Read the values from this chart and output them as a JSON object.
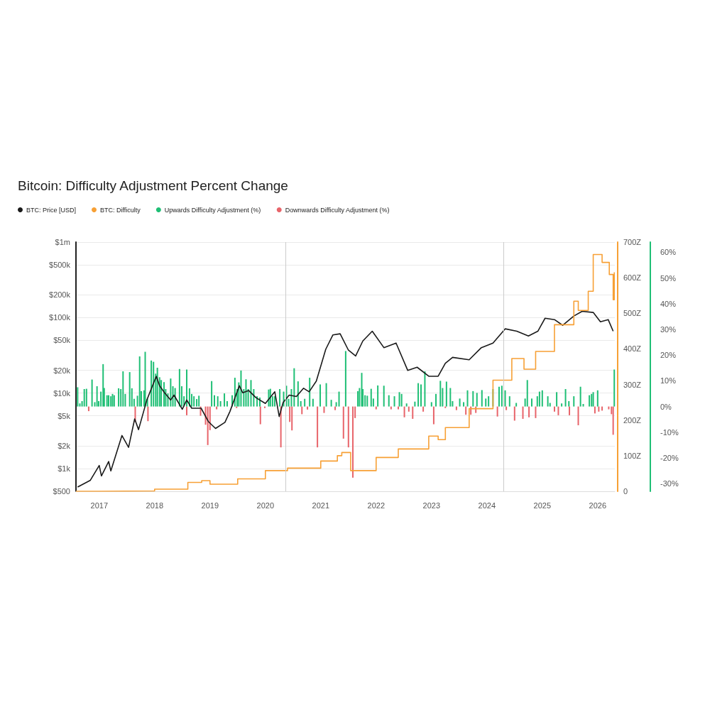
{
  "chart_data": {
    "type": "line",
    "title": "Bitcoin: Difficulty Adjustment Percent Change",
    "xlim": [
      2016.58,
      2026.31
    ],
    "xticks": [
      2017,
      2018,
      2019,
      2020,
      2021,
      2022,
      2023,
      2024,
      2025,
      2026
    ],
    "ylim": [
      500,
      1000000
    ],
    "yticks": [
      {
        "value": 500,
        "label": "$500"
      },
      {
        "value": 1000,
        "label": "$1k"
      },
      {
        "value": 2000,
        "label": "$2k"
      },
      {
        "value": 5000,
        "label": "$5k"
      },
      {
        "value": 10000,
        "label": "$10k"
      },
      {
        "value": 20000,
        "label": "$20k"
      },
      {
        "value": 50000,
        "label": "$50k"
      },
      {
        "value": 100000,
        "label": "$100k"
      },
      {
        "value": 200000,
        "label": "$200k"
      },
      {
        "value": 500000,
        "label": "$500k"
      },
      {
        "value": 1000000,
        "label": "$1m"
      }
    ],
    "y2lim": [
      0,
      700
    ],
    "y2ticks": [
      0,
      {
        "value": 100,
        "label": "100Z"
      },
      {
        "value": 200,
        "label": "200Z"
      },
      {
        "value": 300,
        "label": "300Z"
      },
      {
        "value": 400,
        "label": "400Z"
      },
      {
        "value": 500,
        "label": "500Z"
      },
      {
        "value": 600,
        "label": "600Z"
      },
      {
        "value": 700,
        "label": "700Z"
      }
    ],
    "y3lim": [
      -33,
      64
    ],
    "y3ticks": [
      {
        "value": -30,
        "label": "-30%"
      },
      {
        "value": -20,
        "label": "-20%"
      },
      {
        "value": -10,
        "label": "-10%"
      },
      {
        "value": 0,
        "label": "0%"
      },
      {
        "value": 10,
        "label": "10%"
      },
      {
        "value": 20,
        "label": "20%"
      },
      {
        "value": 30,
        "label": "30%"
      },
      {
        "value": 40,
        "label": "40%"
      },
      {
        "value": 50,
        "label": "50%"
      },
      {
        "value": 60,
        "label": "60%"
      }
    ],
    "log": "y",
    "grid": "y",
    "legend": "top left",
    "marker": "none",
    "ref_lines": [
      {
        "axis": "x",
        "value": 2020.36,
        "color": "#cccccc"
      },
      {
        "axis": "x",
        "value": 2024.3,
        "color": "#cccccc"
      }
    ],
    "series": [
      {
        "name": "BTC: Price [USD]",
        "axis": "y",
        "color": "#1a1a1a",
        "x": [
          2016.61,
          2016.84,
          2017.0,
          2017.04,
          2017.17,
          2017.21,
          2017.41,
          2017.53,
          2017.64,
          2017.71,
          2017.86,
          2018.03,
          2018.09,
          2018.18,
          2018.29,
          2018.35,
          2018.5,
          2018.58,
          2018.67,
          2018.84,
          2018.97,
          2019.1,
          2019.27,
          2019.36,
          2019.53,
          2019.59,
          2019.7,
          2019.83,
          2020.0,
          2020.17,
          2020.25,
          2020.32,
          2020.43,
          2020.56,
          2020.69,
          2020.79,
          2020.92,
          2021.09,
          2021.22,
          2021.35,
          2021.5,
          2021.63,
          2021.76,
          2021.93,
          2022.14,
          2022.36,
          2022.57,
          2022.74,
          2022.95,
          2023.12,
          2023.25,
          2023.38,
          2023.68,
          2023.9,
          2024.11,
          2024.33,
          2024.54,
          2024.75,
          2024.92,
          2025.05,
          2025.22,
          2025.37,
          2025.57,
          2025.72,
          2025.92,
          2026.05,
          2026.19,
          2026.28
        ],
        "values": [
          570,
          700,
          1100,
          800,
          1240,
          930,
          2740,
          1910,
          4550,
          3280,
          8100,
          16700,
          12500,
          10100,
          8100,
          9400,
          6100,
          8100,
          6300,
          6300,
          4200,
          3400,
          4100,
          5700,
          12500,
          10100,
          10800,
          8700,
          7300,
          10400,
          4900,
          7500,
          9400,
          9000,
          11600,
          10400,
          14400,
          38000,
          59000,
          61000,
          37000,
          31000,
          49000,
          66000,
          40000,
          46000,
          20000,
          22000,
          16700,
          16700,
          24800,
          29700,
          27600,
          40000,
          46000,
          71000,
          66000,
          57000,
          66000,
          98000,
          94000,
          79000,
          105000,
          121000,
          117000,
          88000,
          94000,
          66000
        ]
      },
      {
        "name": "BTC: Difficulty",
        "type": "step",
        "axis": "y2",
        "color": "#f7a035",
        "x": [
          2016.58,
          2017.0,
          2018.0,
          2018.6,
          2018.85,
          2019.0,
          2019.5,
          2020.0,
          2020.4,
          2021.0,
          2021.3,
          2021.38,
          2021.54,
          2022.0,
          2022.4,
          2022.7,
          2022.95,
          2023.12,
          2023.25,
          2023.68,
          2024.11,
          2024.45,
          2024.67,
          2024.88,
          2025.22,
          2025.57,
          2025.65,
          2025.83,
          2025.92,
          2026.08,
          2026.21,
          2026.28,
          2026.3
        ],
        "values": [
          0,
          1,
          6,
          25,
          30,
          20,
          35,
          58,
          65,
          85,
          100,
          109,
          58,
          95,
          119,
          119,
          155,
          145,
          179,
          232,
          312,
          373,
          343,
          393,
          468,
          534,
          508,
          562,
          665,
          643,
          609,
          538,
          615
        ]
      },
      {
        "name": "Upwards Difficulty Adjustment (%)",
        "type": "bar",
        "axis": "y3",
        "color": "#1fbf75",
        "x": [
          2016.61,
          2016.65,
          2016.69,
          2016.73,
          2016.77,
          2016.87,
          2016.92,
          2016.96,
          2016.99,
          2017.03,
          2017.07,
          2017.09,
          2017.14,
          2017.17,
          2017.21,
          2017.24,
          2017.27,
          2017.35,
          2017.39,
          2017.43,
          2017.47,
          2017.55,
          2017.59,
          2017.63,
          2017.69,
          2017.73,
          2017.76,
          2017.81,
          2017.83,
          2017.87,
          2017.94,
          2017.98,
          2018.02,
          2018.05,
          2018.09,
          2018.12,
          2018.17,
          2018.2,
          2018.24,
          2018.29,
          2018.33,
          2018.37,
          2018.45,
          2018.49,
          2018.53,
          2018.58,
          2018.63,
          2018.67,
          2018.71,
          2018.76,
          2018.8,
          2019.03,
          2019.08,
          2019.14,
          2019.19,
          2019.26,
          2019.31,
          2019.4,
          2019.45,
          2019.49,
          2019.52,
          2019.56,
          2019.61,
          2019.65,
          2019.69,
          2019.74,
          2019.79,
          2019.85,
          2019.9,
          2020.06,
          2020.09,
          2020.13,
          2020.17,
          2020.26,
          2020.33,
          2020.38,
          2020.42,
          2020.47,
          2020.52,
          2020.59,
          2020.64,
          2020.71,
          2020.8,
          2020.86,
          2020.99,
          2021.1,
          2021.19,
          2021.28,
          2021.33,
          2021.45,
          2021.67,
          2021.7,
          2021.74,
          2021.76,
          2021.8,
          2021.84,
          2021.91,
          2021.95,
          2022.03,
          2022.14,
          2022.23,
          2022.33,
          2022.42,
          2022.46,
          2022.55,
          2022.7,
          2022.76,
          2022.81,
          2022.88,
          2023.0,
          2023.08,
          2023.16,
          2023.2,
          2023.27,
          2023.34,
          2023.38,
          2023.51,
          2023.58,
          2023.65,
          2023.75,
          2023.82,
          2023.91,
          2023.98,
          2024.03,
          2024.11,
          2024.22,
          2024.27,
          2024.33,
          2024.41,
          2024.53,
          2024.69,
          2024.73,
          2024.81,
          2024.91,
          2024.95,
          2025.0,
          2025.1,
          2025.14,
          2025.26,
          2025.35,
          2025.42,
          2025.48,
          2025.57,
          2025.69,
          2025.74,
          2025.85,
          2025.89,
          2025.92,
          2026.0,
          2026.3
        ],
        "values": [
          7.5,
          1.2,
          2.1,
          6.8,
          6.9,
          10.5,
          1.7,
          7.9,
          2.1,
          5.8,
          16.5,
          7.2,
          4.4,
          4.4,
          4.0,
          4.9,
          4.4,
          7.1,
          6.8,
          13.7,
          4.9,
          13.4,
          7.1,
          3.0,
          4.2,
          19.5,
          6.0,
          6.3,
          21.3,
          3.0,
          17.9,
          17.4,
          12.8,
          15.1,
          11.4,
          10.3,
          9.5,
          6.8,
          5.1,
          10.9,
          7.9,
          7.2,
          14.6,
          7.9,
          4.0,
          14.4,
          7.1,
          4.9,
          4.0,
          2.9,
          4.2,
          9.9,
          4.4,
          4.0,
          2.1,
          5.1,
          2.1,
          4.4,
          11.2,
          6.8,
          9.4,
          14.0,
          6.8,
          10.6,
          6.8,
          10.3,
          6.8,
          4.0,
          3.5,
          6.6,
          6.9,
          4.0,
          4.0,
          6.8,
          5.8,
          8.1,
          3.0,
          6.8,
          14.9,
          9.8,
          2.1,
          3.0,
          11.2,
          3.0,
          8.6,
          9.1,
          2.6,
          1.7,
          5.8,
          21.6,
          6.0,
          7.2,
          13.1,
          6.8,
          4.4,
          4.2,
          6.9,
          3.1,
          8.2,
          8.1,
          4.4,
          4.0,
          5.6,
          4.9,
          1.2,
          1.9,
          9.1,
          8.6,
          13.7,
          1.7,
          4.9,
          10.0,
          7.2,
          9.7,
          7.2,
          2.1,
          3.1,
          1.7,
          6.3,
          6.0,
          5.3,
          6.4,
          3.1,
          4.0,
          6.8,
          7.7,
          8.1,
          6.3,
          4.0,
          1.4,
          3.1,
          10.3,
          3.1,
          4.0,
          5.8,
          6.3,
          4.0,
          1.4,
          5.6,
          1.2,
          6.8,
          2.1,
          4.0,
          7.7,
          1.0,
          4.4,
          4.9,
          5.6,
          6.3,
          14.4
        ]
      },
      {
        "name": "Downwards Difficulty Adjustment (%)",
        "type": "bar",
        "axis": "y3",
        "color": "#e8646a",
        "x": [
          2016.81,
          2017.65,
          2017.88,
          2018.58,
          2018.83,
          2018.92,
          2018.96,
          2019.0,
          2019.12,
          2019.48,
          2019.91,
          2019.99,
          2020.28,
          2020.44,
          2020.48,
          2020.66,
          2020.76,
          2020.94,
          2021.06,
          2021.26,
          2021.41,
          2021.5,
          2021.58,
          2021.62,
          2022.0,
          2022.27,
          2022.4,
          2022.51,
          2022.59,
          2022.66,
          2022.85,
          2023.04,
          2023.25,
          2023.45,
          2023.62,
          2023.71,
          2023.8,
          2024.19,
          2024.35,
          2024.5,
          2024.65,
          2024.76,
          2024.88,
          2025.22,
          2025.29,
          2025.49,
          2025.65,
          2025.95,
          2026.02,
          2026.08,
          2026.2,
          2026.25,
          2026.28
        ],
        "values": [
          -1.8,
          -6.0,
          -5.7,
          -3.4,
          -3.6,
          -7.1,
          -15.0,
          -9.2,
          -1.1,
          -0.6,
          -6.9,
          -0.6,
          -15.9,
          -6.0,
          -9.3,
          -3.0,
          -1.2,
          -15.9,
          -2.5,
          -1.4,
          -12.5,
          -15.9,
          -27.7,
          -4.5,
          -1.1,
          -1.1,
          -1.1,
          -4.2,
          -2.0,
          -4.8,
          -2.0,
          -6.9,
          -0.6,
          -1.4,
          -3.2,
          -3.2,
          -2.5,
          -3.9,
          -1.4,
          -5.5,
          -4.8,
          -4.2,
          -4.5,
          -2.0,
          -3.4,
          -3.4,
          -7.3,
          -2.7,
          -2.0,
          -1.6,
          -1.1,
          -3.0,
          -11.0
        ]
      }
    ]
  }
}
